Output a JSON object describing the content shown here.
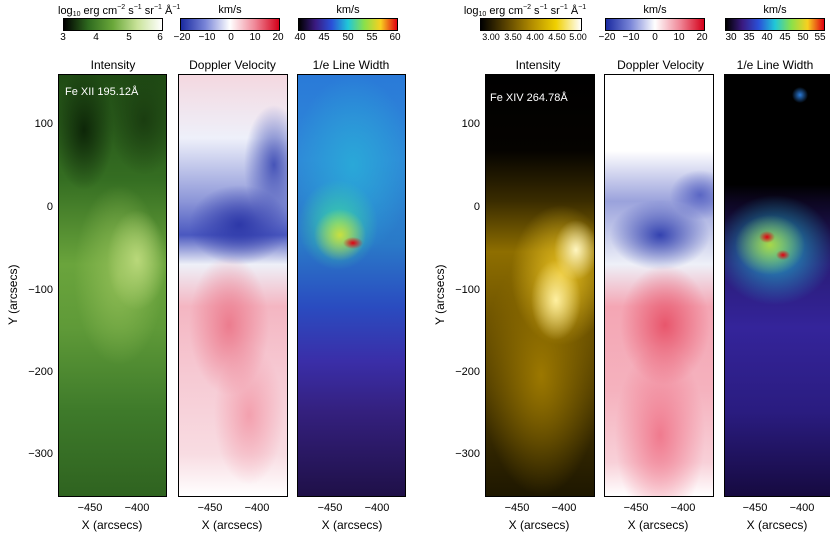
{
  "left_figure": {
    "line_label": "Fe XII 195.12Å",
    "colorbars": {
      "intensity": {
        "unit_main": "log",
        "unit_sub": "10",
        "unit_rest": " erg cm",
        "exp1": "−2",
        "mid1": " s",
        "exp2": "−1",
        "mid2": " sr",
        "exp3": "−1",
        "tail": " Å",
        "exp4": "−1",
        "ticks": [
          "3",
          "4",
          "5",
          "6"
        ]
      },
      "doppler": {
        "unit": "km/s",
        "ticks": [
          "−20",
          "−10",
          "0",
          "10",
          "20"
        ]
      },
      "width": {
        "unit": "km/s",
        "ticks": [
          "40",
          "45",
          "50",
          "55",
          "60"
        ]
      }
    },
    "panel_titles": [
      "Intensity",
      "Doppler Velocity",
      "1/e Line Width"
    ],
    "y_label": "Y (arcsecs)",
    "y_ticks": [
      "100",
      "0",
      "−100",
      "−200",
      "−300"
    ],
    "x_label": "X (arcsecs)",
    "x_ticks": [
      "−450",
      "−400"
    ]
  },
  "right_figure": {
    "line_label": "Fe XIV 264.78Å",
    "colorbars": {
      "intensity": {
        "unit_main": "log",
        "unit_sub": "10",
        "unit_rest": " erg cm",
        "exp1": "−2",
        "mid1": " s",
        "exp2": "−1",
        "mid2": " sr",
        "exp3": "−1",
        "tail": " Å",
        "exp4": "−1",
        "ticks": [
          "3.00",
          "3.50",
          "4.00",
          "4.50",
          "5.00"
        ]
      },
      "doppler": {
        "unit": "km/s",
        "ticks": [
          "−20",
          "−10",
          "0",
          "10",
          "20"
        ]
      },
      "width": {
        "unit": "km/s",
        "ticks": [
          "30",
          "35",
          "40",
          "45",
          "50",
          "55"
        ]
      }
    },
    "panel_titles": [
      "Intensity",
      "Doppler Velocity",
      "1/e Line Width"
    ],
    "y_label": "Y (arcsecs)",
    "y_ticks": [
      "100",
      "0",
      "−100",
      "−200",
      "−300"
    ],
    "x_label": "X (arcsecs)",
    "x_ticks": [
      "−450",
      "−400"
    ]
  },
  "colors": {
    "fe12_intensity": [
      "#000000",
      "#2f6b1f",
      "#6aa83a",
      "#c9e39a",
      "#ffffff"
    ],
    "fe14_intensity": [
      "#000000",
      "#5a4300",
      "#b08a00",
      "#f0d000",
      "#ffffff"
    ],
    "doppler": [
      "#1a2aa0",
      "#7a86d8",
      "#ffffff",
      "#f08a9a",
      "#d4001a"
    ],
    "width": [
      "#000000",
      "#3a1a80",
      "#2a50d8",
      "#20c8d8",
      "#8ae04a",
      "#f8d020",
      "#e00010"
    ]
  }
}
